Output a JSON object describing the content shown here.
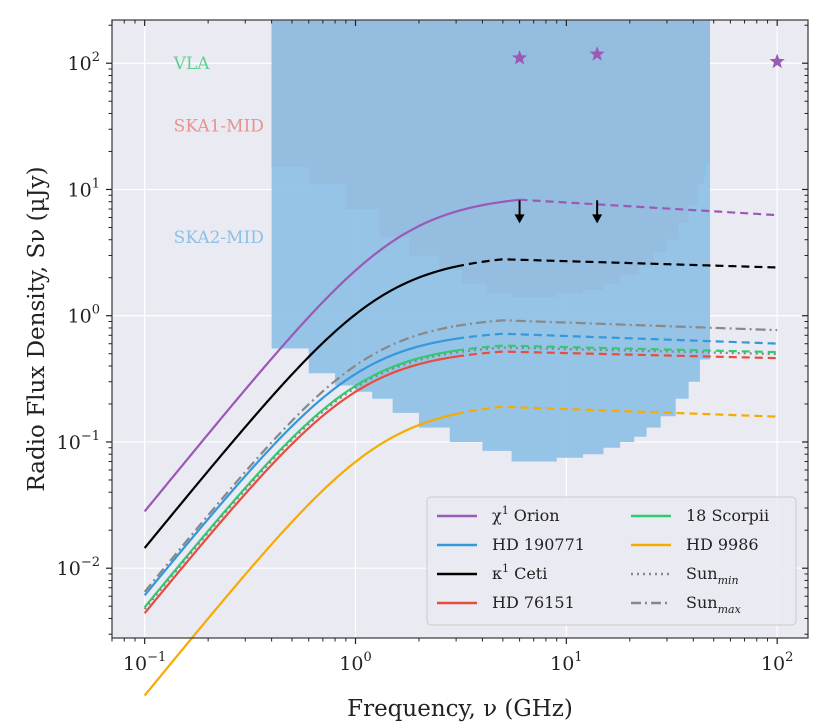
{
  "chart_data": {
    "type": "line",
    "xlabel": "Frequency, ν (GHz)",
    "ylabel": "Radio Flux Density, Sν (μJy)",
    "xscale": "log",
    "yscale": "log",
    "xlim": [
      0.07,
      140
    ],
    "ylim": [
      0.0028,
      220
    ],
    "grid": true,
    "x_ticks": [
      {
        "value": 0.1,
        "base": "10",
        "exp": "−1"
      },
      {
        "value": 1,
        "base": "10",
        "exp": "0"
      },
      {
        "value": 10,
        "base": "10",
        "exp": "1"
      },
      {
        "value": 100,
        "base": "10",
        "exp": "2"
      }
    ],
    "y_ticks": [
      {
        "value": 0.01,
        "base": "10",
        "exp": "−2"
      },
      {
        "value": 0.1,
        "base": "10",
        "exp": "−1"
      },
      {
        "value": 1,
        "base": "10",
        "exp": "0"
      },
      {
        "value": 10,
        "base": "10",
        "exp": "1"
      },
      {
        "value": 100,
        "base": "10",
        "exp": "2"
      }
    ],
    "sensitivity_regions": [
      {
        "name": "VLA",
        "color": "#5fd18f",
        "label_pos": [
          0.13,
          100
        ],
        "x": [
          0.4,
          0.6,
          0.9,
          1.3,
          1.8,
          2.5,
          3.2,
          4.2,
          5.5,
          7,
          8.5,
          10,
          12,
          15,
          18,
          22,
          26,
          30,
          34,
          38,
          42,
          46,
          48
        ],
        "y": [
          85,
          60,
          45,
          32,
          24,
          18,
          14,
          11,
          9.5,
          8,
          6.5,
          5.2,
          5.8,
          5.5,
          6,
          6.5,
          7,
          8,
          9,
          11,
          13,
          16,
          180
        ]
      },
      {
        "name": "SKA1-MID",
        "color": "#e8928f",
        "label_pos": [
          0.13,
          32
        ],
        "x": [
          0.4,
          0.6,
          0.9,
          1.3,
          1.8,
          2.5,
          3.2,
          4.2,
          5.5,
          7,
          9,
          12,
          15,
          18,
          22,
          26,
          30,
          34,
          38,
          42,
          45,
          48
        ],
        "y": [
          15,
          11,
          7,
          4.2,
          3,
          2.3,
          1.8,
          1.5,
          1.4,
          1.4,
          1.5,
          1.6,
          1.8,
          2.1,
          2.5,
          3.2,
          4,
          5.5,
          7.5,
          11,
          18,
          60
        ]
      },
      {
        "name": "SKA2-MID",
        "color": "#8dc0e6",
        "label_pos": [
          0.13,
          4.2
        ],
        "x": [
          0.4,
          0.6,
          0.8,
          1.0,
          1.2,
          1.5,
          2.0,
          2.8,
          4,
          5.5,
          7,
          9,
          12,
          15,
          18,
          21,
          24,
          28,
          33,
          38,
          43,
          48
        ],
        "y": [
          0.55,
          0.35,
          0.28,
          0.25,
          0.22,
          0.17,
          0.13,
          0.1,
          0.085,
          0.07,
          0.07,
          0.075,
          0.08,
          0.09,
          0.1,
          0.11,
          0.13,
          0.16,
          0.22,
          0.3,
          0.45,
          0.55
        ]
      }
    ],
    "upper_limits": [
      {
        "x": 6,
        "y": 8.2
      },
      {
        "x": 14,
        "y": 8.2
      }
    ],
    "star_points": [
      {
        "x": 6,
        "y": 110
      },
      {
        "x": 14,
        "y": 118
      },
      {
        "x": 100,
        "y": 103
      }
    ],
    "star_color": "#9b59b6",
    "series": [
      {
        "name": "χ¹ Orion",
        "color": "#9b59b6",
        "style": "solid",
        "turnover": 1.6,
        "peak": 8.3,
        "x_peak": 6,
        "slope_high": -0.1,
        "solid_until": 6
      },
      {
        "name": "HD 190771",
        "color": "#3498db",
        "style": "solid",
        "turnover": 1.0,
        "peak": 0.72,
        "x_peak": 5,
        "slope_high": -0.06,
        "solid_until": 3
      },
      {
        "name": "κ¹ Ceti",
        "color": "#000000",
        "style": "solid",
        "turnover": 1.3,
        "peak": 2.8,
        "x_peak": 5,
        "slope_high": -0.05,
        "solid_until": 3
      },
      {
        "name": "HD 76151",
        "color": "#e74c3c",
        "style": "solid",
        "turnover": 1.0,
        "peak": 0.52,
        "x_peak": 5,
        "slope_high": -0.04,
        "solid_until": 3
      },
      {
        "name": "18 Scorpii",
        "color": "#2ecc71",
        "style": "solid",
        "turnover": 1.0,
        "peak": 0.58,
        "x_peak": 5,
        "slope_high": -0.04,
        "solid_until": 3
      },
      {
        "name": "HD 9986",
        "color": "#f5ab00",
        "style": "solid",
        "turnover": 1.3,
        "peak": 0.19,
        "x_peak": 5,
        "slope_high": -0.06,
        "solid_until": 3
      },
      {
        "name": "Sun_min",
        "color": "#888888",
        "style": "dotted",
        "turnover": 1.0,
        "peak": 0.56,
        "x_peak": 5,
        "slope_high": -0.04,
        "solid_until": 3
      },
      {
        "name": "Sun_max",
        "color": "#888888",
        "style": "dashdot",
        "turnover": 1.1,
        "peak": 0.92,
        "x_peak": 5,
        "slope_high": -0.06,
        "solid_until": 3
      }
    ],
    "legend": {
      "placement": "lower-right",
      "entries": [
        {
          "text": "χ",
          "sup": "1",
          "rest": " Orion",
          "color": "#9b59b6",
          "style": "solid"
        },
        {
          "text": "18 Scorpii",
          "sup": "",
          "rest": "",
          "color": "#2ecc71",
          "style": "solid"
        },
        {
          "text": "HD 190771",
          "sup": "",
          "rest": "",
          "color": "#3498db",
          "style": "solid"
        },
        {
          "text": "HD 9986",
          "sup": "",
          "rest": "",
          "color": "#f5ab00",
          "style": "solid"
        },
        {
          "text": "κ",
          "sup": "1",
          "rest": " Ceti",
          "color": "#000000",
          "style": "solid"
        },
        {
          "text": "Sun",
          "sub": "min",
          "rest": "",
          "color": "#888888",
          "style": "dotted"
        },
        {
          "text": "HD 76151",
          "sup": "",
          "rest": "",
          "color": "#e74c3c",
          "style": "solid"
        },
        {
          "text": "Sun",
          "sub": "max",
          "rest": "",
          "color": "#888888",
          "style": "dashdot"
        }
      ]
    }
  }
}
